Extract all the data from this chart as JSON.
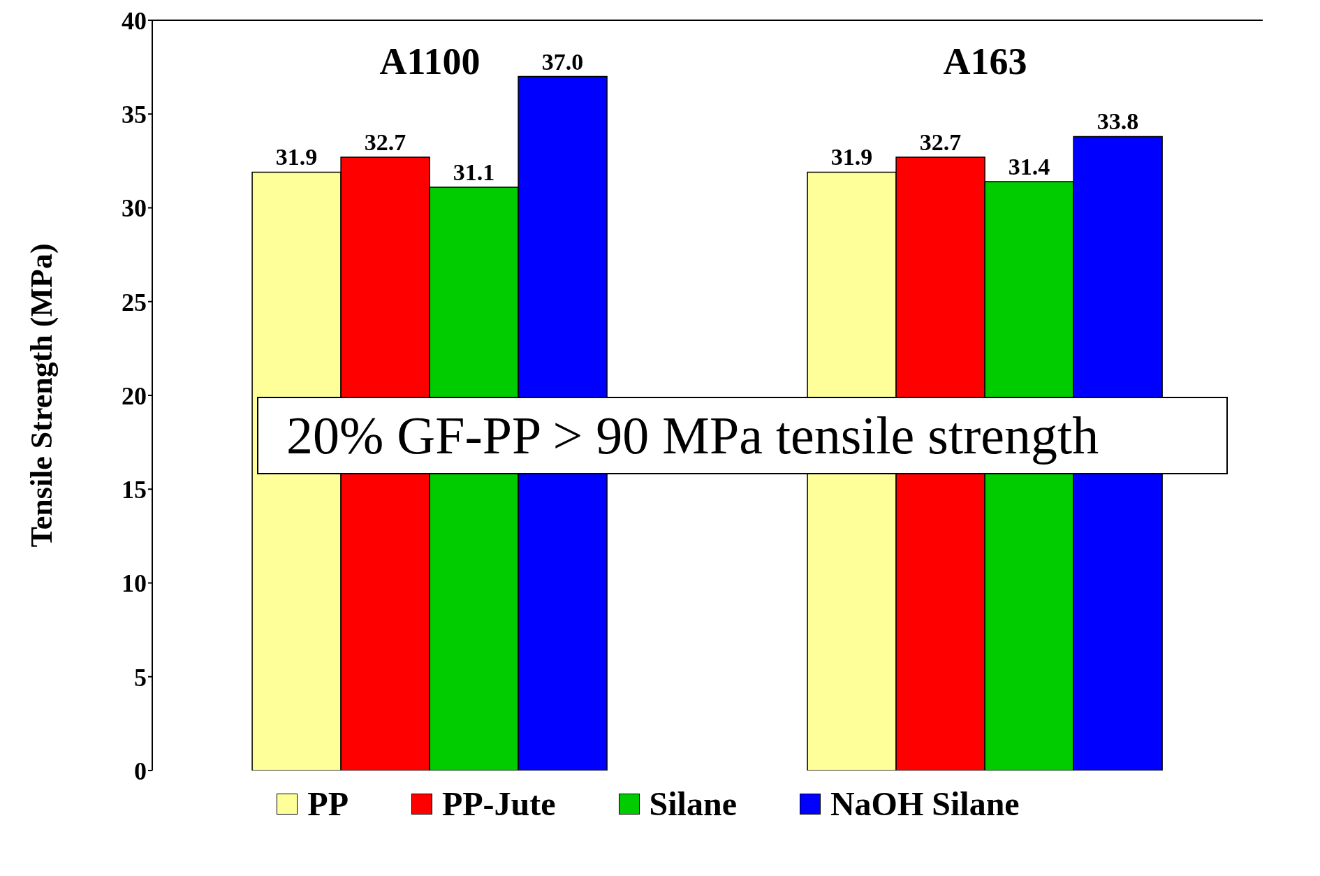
{
  "chart_data": {
    "type": "bar",
    "ylabel": "Tensile Strength (MPa)",
    "categories": [
      "A1100",
      "A163"
    ],
    "series": [
      {
        "name": "PP",
        "color": "#ffff99",
        "values": [
          31.9,
          31.9
        ],
        "value_labels": [
          "31.9",
          "31.9"
        ]
      },
      {
        "name": "PP-Jute",
        "color": "#ff0000",
        "values": [
          32.7,
          32.7
        ],
        "value_labels": [
          "32.7",
          "32.7"
        ]
      },
      {
        "name": "Silane",
        "color": "#00cc00",
        "values": [
          31.1,
          31.4
        ],
        "value_labels": [
          "31.1",
          "31.4"
        ]
      },
      {
        "name": "NaOH Silane",
        "color": "#0000ff",
        "values": [
          37.0,
          33.8
        ],
        "value_labels": [
          "37.0",
          "33.8"
        ]
      }
    ],
    "ylim": [
      0,
      40
    ],
    "yticks": [
      0,
      5,
      10,
      15,
      20,
      25,
      30,
      35,
      40
    ],
    "legend": "bottom",
    "annotations": [
      "20% GF-PP > 90 MPa tensile strength"
    ]
  }
}
